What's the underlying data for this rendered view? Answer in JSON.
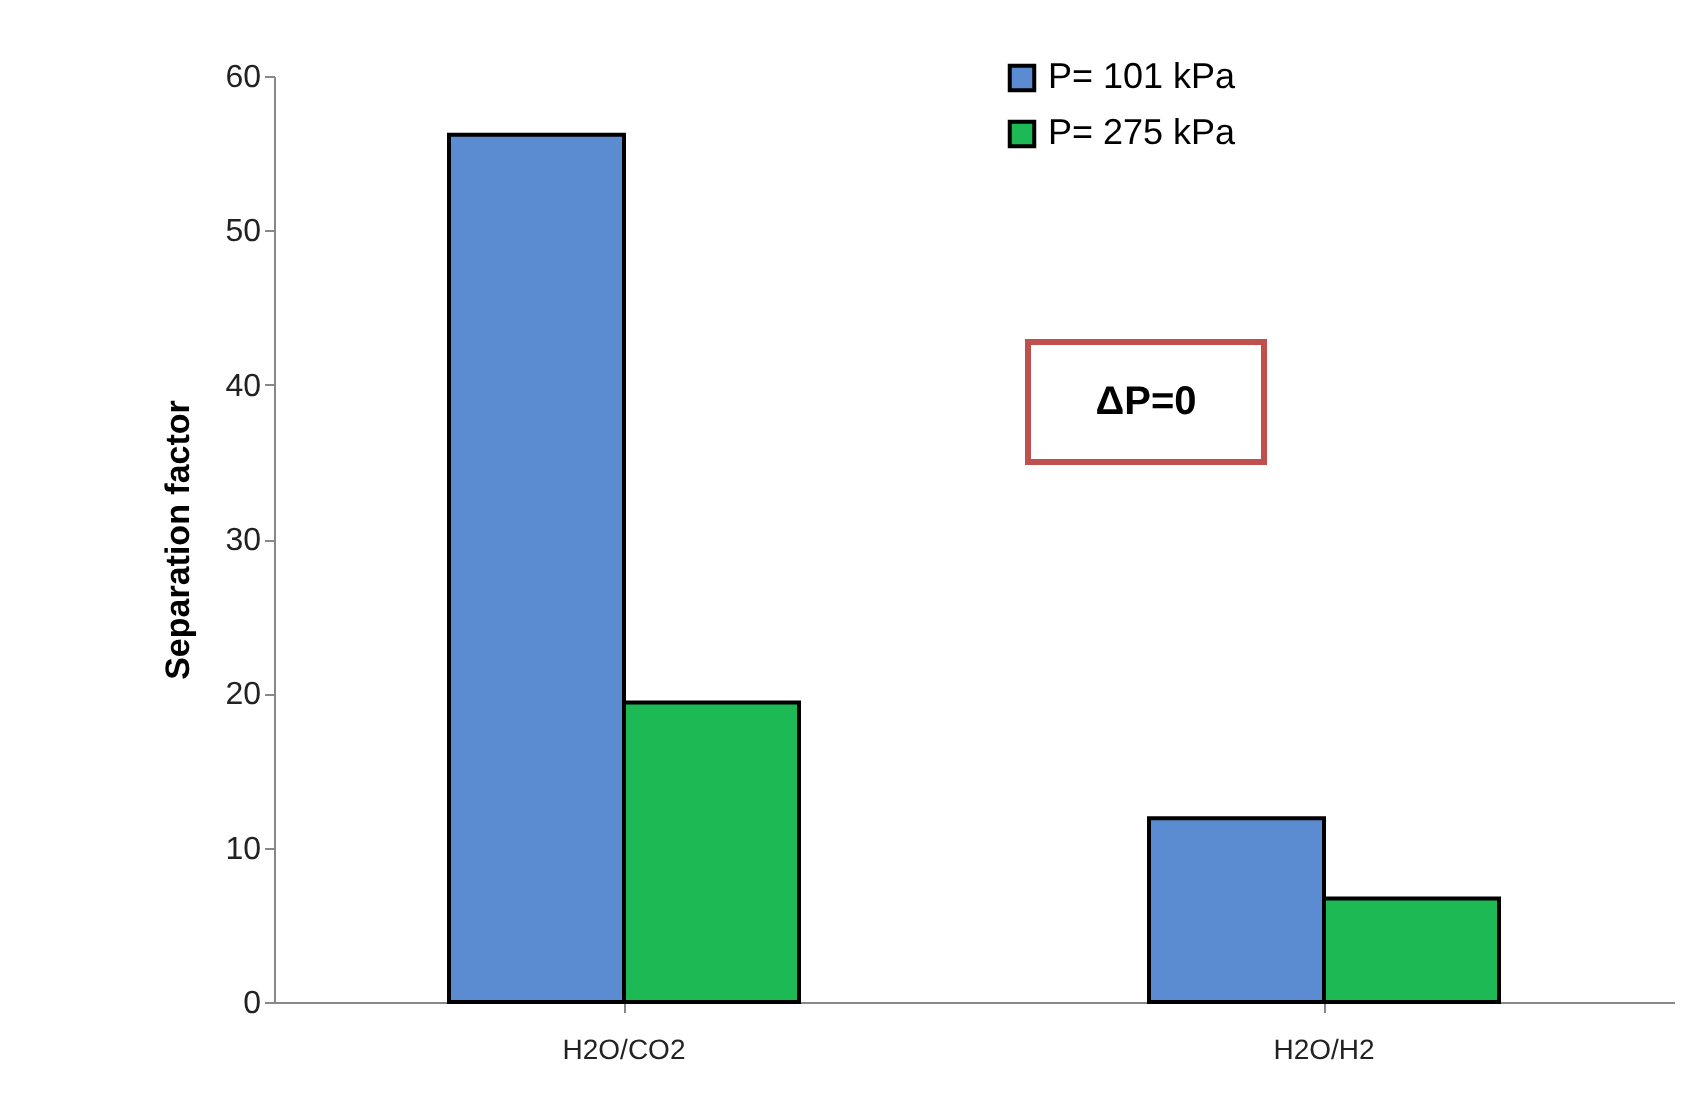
{
  "chart_data": {
    "type": "bar",
    "ylabel": "Separation factor",
    "categories": [
      "H2O/CO2",
      "H2O/H2"
    ],
    "series": [
      {
        "name": "P= 101 kPa",
        "color": "#5b8bd0",
        "values": [
          56.2,
          11.9
        ]
      },
      {
        "name": "P= 275 kPa",
        "color": "#1db954",
        "values": [
          19.4,
          6.7
        ]
      }
    ],
    "ylim": [
      0,
      60
    ],
    "yticks": [
      0,
      10,
      20,
      30,
      40,
      50,
      60
    ],
    "grid": false,
    "legend": "top right",
    "annotations": [
      "ΔP=0"
    ]
  }
}
